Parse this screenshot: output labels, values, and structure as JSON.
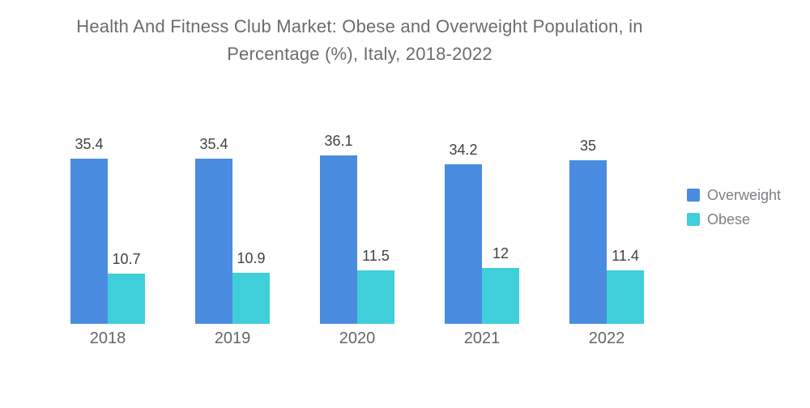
{
  "title": {
    "lines": [
      "Health And Fitness Club Market: Obese and Overweight Population, in",
      "Percentage (%), Italy, 2018-2022"
    ]
  },
  "legend": {
    "position": "right",
    "items": [
      {
        "label": "Overweight",
        "color": "#4A8CE0"
      },
      {
        "label": "Obese",
        "color": "#3ECFDA"
      }
    ]
  },
  "chart_data": {
    "type": "bar",
    "title": "Health And Fitness Club Market: Obese and Overweight Population, in Percentage (%), Italy, 2018-2022",
    "categories": [
      "2018",
      "2019",
      "2020",
      "2021",
      "2022"
    ],
    "series": [
      {
        "name": "Overweight",
        "color": "#4A8CE0",
        "values": [
          35.4,
          35.4,
          36.1,
          34.2,
          35
        ]
      },
      {
        "name": "Obese",
        "color": "#3ECFDA",
        "values": [
          10.7,
          10.9,
          11.5,
          12,
          11.4
        ]
      }
    ],
    "xlabel": "",
    "ylabel": "",
    "ylim": [
      0,
      40
    ],
    "grid": false,
    "value_labels": true,
    "legend_position": "right"
  }
}
